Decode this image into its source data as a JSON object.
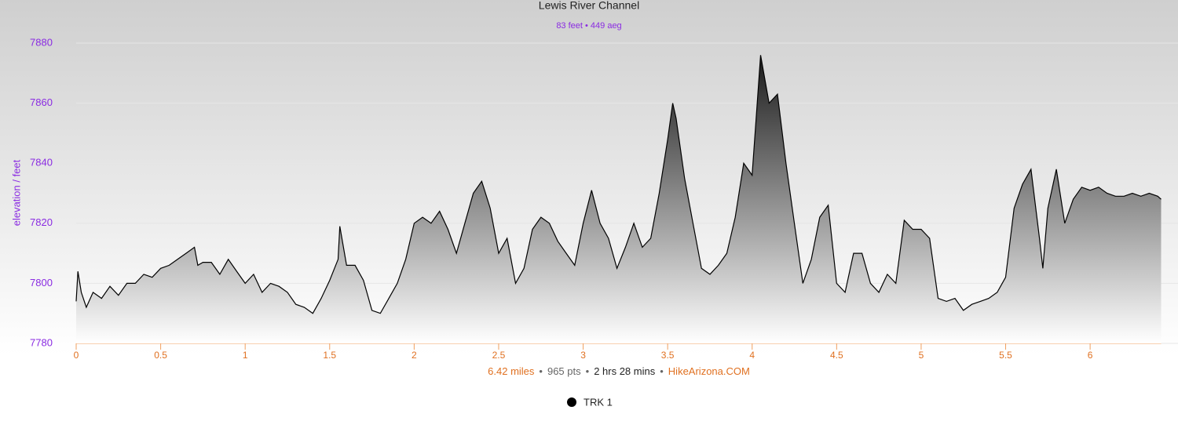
{
  "chart_data": {
    "type": "area",
    "title": "Lewis River Channel",
    "subtitle": "83 feet • 449 aeg",
    "y_label": "elevation / feet",
    "footer": [
      "6.42 miles",
      "965 pts",
      "2 hrs 28 mins",
      "HikeArizona.COM"
    ],
    "footer_separator": "•",
    "xlim": [
      0,
      6.42
    ],
    "xticks": [
      0,
      0.5,
      1,
      1.5,
      2,
      2.5,
      3,
      3.5,
      4,
      4.5,
      5,
      5.5,
      6
    ],
    "ylim": [
      7780,
      7880
    ],
    "yticks": [
      7780,
      7800,
      7820,
      7840,
      7860,
      7880
    ],
    "grid": true,
    "legend": "bottom",
    "series": [
      {
        "name": "TRK 1",
        "color": "#000000",
        "x": [
          0,
          0.01,
          0.03,
          0.06,
          0.1,
          0.15,
          0.2,
          0.25,
          0.3,
          0.35,
          0.4,
          0.45,
          0.5,
          0.55,
          0.6,
          0.65,
          0.7,
          0.72,
          0.75,
          0.8,
          0.85,
          0.9,
          0.95,
          1.0,
          1.05,
          1.1,
          1.15,
          1.2,
          1.25,
          1.3,
          1.35,
          1.4,
          1.45,
          1.5,
          1.55,
          1.56,
          1.6,
          1.65,
          1.7,
          1.75,
          1.8,
          1.85,
          1.9,
          1.95,
          2.0,
          2.05,
          2.1,
          2.15,
          2.2,
          2.25,
          2.3,
          2.35,
          2.4,
          2.45,
          2.5,
          2.55,
          2.6,
          2.65,
          2.7,
          2.75,
          2.8,
          2.85,
          2.9,
          2.95,
          3.0,
          3.05,
          3.1,
          3.15,
          3.2,
          3.25,
          3.3,
          3.35,
          3.4,
          3.45,
          3.5,
          3.53,
          3.55,
          3.6,
          3.65,
          3.7,
          3.75,
          3.8,
          3.85,
          3.9,
          3.95,
          4.0,
          4.03,
          4.05,
          4.1,
          4.15,
          4.2,
          4.25,
          4.3,
          4.35,
          4.4,
          4.45,
          4.5,
          4.55,
          4.6,
          4.65,
          4.7,
          4.75,
          4.8,
          4.85,
          4.9,
          4.95,
          5.0,
          5.05,
          5.1,
          5.15,
          5.2,
          5.25,
          5.3,
          5.35,
          5.4,
          5.45,
          5.5,
          5.55,
          5.6,
          5.65,
          5.7,
          5.72,
          5.75,
          5.8,
          5.85,
          5.9,
          5.95,
          6.0,
          6.05,
          6.1,
          6.15,
          6.2,
          6.25,
          6.3,
          6.35,
          6.4,
          6.42
        ],
        "values": [
          7794,
          7804,
          7797,
          7792,
          7797,
          7795,
          7799,
          7796,
          7800,
          7800,
          7803,
          7802,
          7805,
          7806,
          7808,
          7810,
          7812,
          7806,
          7807,
          7807,
          7803,
          7808,
          7804,
          7800,
          7803,
          7797,
          7800,
          7799,
          7797,
          7793,
          7792,
          7790,
          7795,
          7801,
          7808,
          7819,
          7806,
          7806,
          7801,
          7791,
          7790,
          7795,
          7800,
          7808,
          7820,
          7822,
          7820,
          7824,
          7818,
          7810,
          7820,
          7830,
          7834,
          7825,
          7810,
          7815,
          7800,
          7805,
          7818,
          7822,
          7820,
          7814,
          7810,
          7806,
          7820,
          7831,
          7820,
          7815,
          7805,
          7812,
          7820,
          7812,
          7815,
          7830,
          7848,
          7860,
          7855,
          7835,
          7820,
          7805,
          7803,
          7806,
          7810,
          7822,
          7840,
          7836,
          7860,
          7876,
          7860,
          7863,
          7840,
          7820,
          7800,
          7808,
          7822,
          7826,
          7800,
          7797,
          7810,
          7810,
          7800,
          7797,
          7803,
          7800,
          7821,
          7818,
          7818,
          7815,
          7795,
          7794,
          7795,
          7791,
          7793,
          7794,
          7795,
          7797,
          7802,
          7825,
          7833,
          7838,
          7815,
          7805,
          7825,
          7838,
          7820,
          7828,
          7832,
          7831,
          7832,
          7830,
          7829,
          7829,
          7830,
          7829,
          7830,
          7829,
          7828
        ]
      }
    ]
  }
}
